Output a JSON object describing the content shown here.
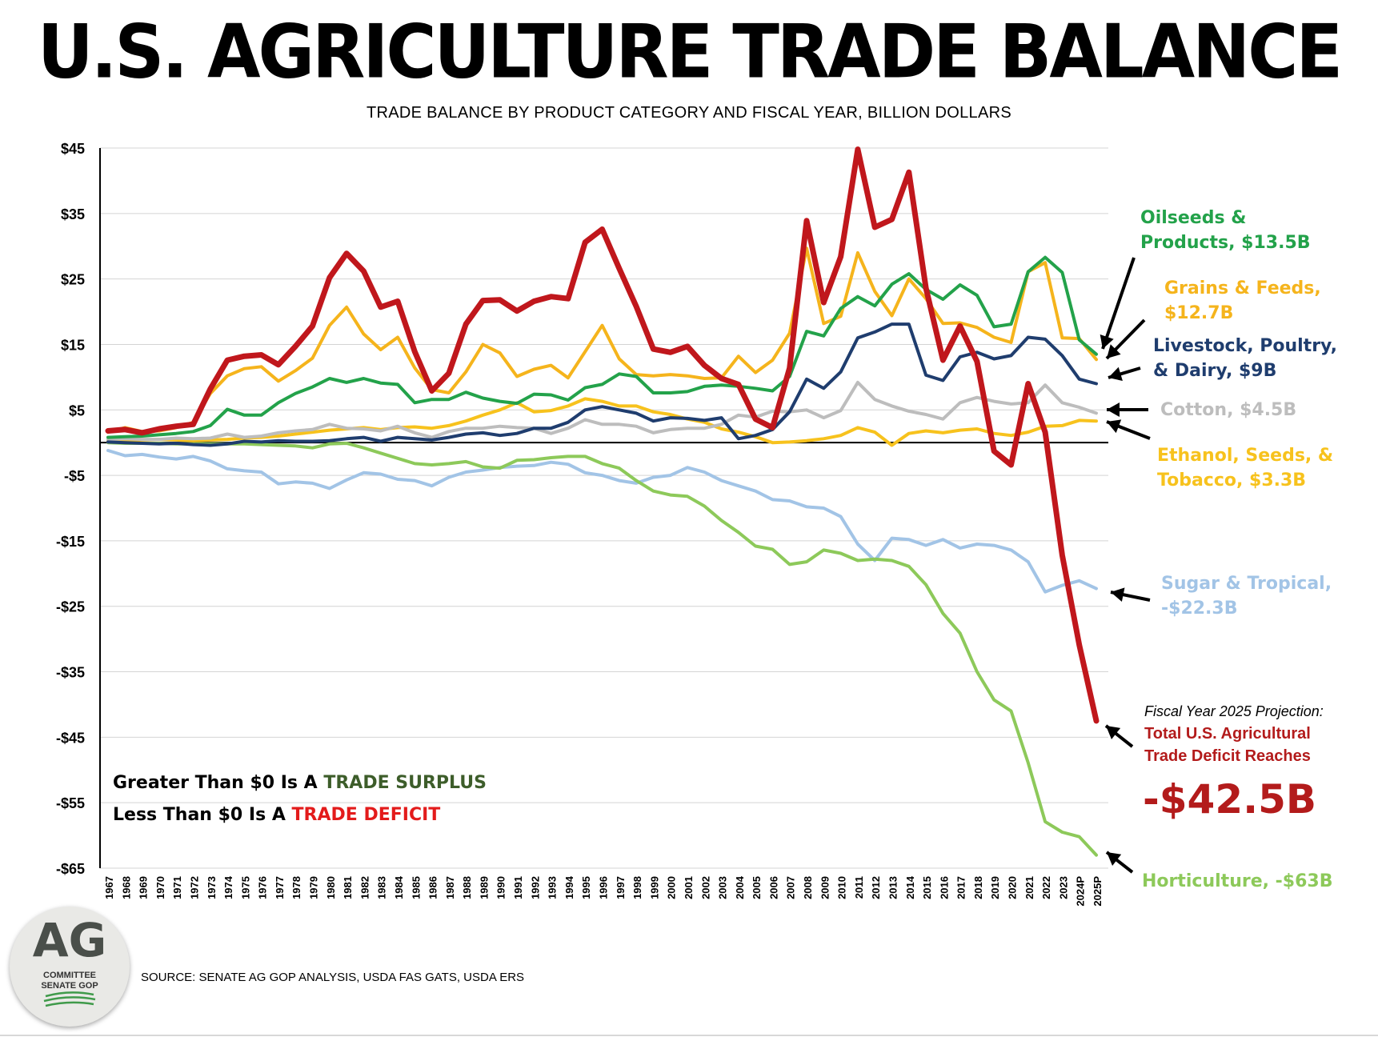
{
  "title": "U.S. AGRICULTURE TRADE BALANCE",
  "subtitle": "TRADE BALANCE BY PRODUCT CATEGORY AND FISCAL YEAR, BILLION DOLLARS",
  "source": "SOURCE: SENATE AG GOP ANALYSIS, USDA FAS GATS, USDA ERS",
  "logo": {
    "big": "AG",
    "line1": "COMMITTEE",
    "line2": "SENATE GOP"
  },
  "notes": {
    "surplus_prefix": "Greater Than $0 Is A ",
    "surplus_term": "TRADE SURPLUS",
    "deficit_prefix": "Less Than $0 Is A ",
    "deficit_term": "TRADE DEFICIT"
  },
  "annotations": {
    "oilseeds": [
      "Oilseeds &",
      "Products, $13.5B"
    ],
    "grains": [
      "Grains & Feeds,",
      "$12.7B"
    ],
    "livestock": [
      "Livestock, Poultry,",
      "& Dairy, $9B"
    ],
    "cotton": [
      "Cotton, $4.5B"
    ],
    "ethanol": [
      "Ethanol, Seeds, &",
      "Tobacco, $3.3B"
    ],
    "sugar": [
      "Sugar & Tropical,",
      "-$22.3B"
    ],
    "projection_italic": "Fiscal Year 2025 Projection:",
    "projection_line1": "Total U.S. Agricultural",
    "projection_line2": "Trade Deficit Reaches",
    "projection_value": "-$42.5B",
    "horticulture": [
      "Horticulture, -$63B"
    ]
  },
  "colors": {
    "total": "#c0171c",
    "oilseeds": "#23a24a",
    "grains": "#f5b41c",
    "livestock": "#1f3d6e",
    "cotton": "#bdbdbd",
    "ethanol": "#f7c21d",
    "sugar": "#a2c4e6",
    "horticulture": "#8dc95a",
    "surplus": "#3d5d2a",
    "deficit": "#e31b1b",
    "grid": "#d4d4d4"
  },
  "chart_data": {
    "type": "line",
    "title": "U.S. AGRICULTURE TRADE BALANCE",
    "subtitle": "TRADE BALANCE BY PRODUCT CATEGORY AND FISCAL YEAR, BILLION DOLLARS",
    "xlabel": "",
    "ylabel": "",
    "ylim": [
      -65,
      45
    ],
    "yticks": [
      45,
      35,
      25,
      15,
      5,
      -5,
      -15,
      -25,
      -35,
      -45,
      -55,
      -65
    ],
    "ytick_labels": [
      "$45",
      "$35",
      "$25",
      "$15",
      "$5",
      "-$5",
      "-$15",
      "-$25",
      "-$35",
      "-$45",
      "-$55",
      "-$65"
    ],
    "grid": true,
    "legend": "none (direct labels on right)",
    "categories": [
      "1967",
      "1968",
      "1969",
      "1970",
      "1971",
      "1972",
      "1973",
      "1974",
      "1975",
      "1976",
      "1977",
      "1978",
      "1979",
      "1980",
      "1981",
      "1982",
      "1983",
      "1984",
      "1985",
      "1986",
      "1987",
      "1988",
      "1989",
      "1990",
      "1991",
      "1992",
      "1993",
      "1994",
      "1995",
      "1996",
      "1997",
      "1998",
      "1999",
      "2000",
      "2001",
      "2002",
      "2003",
      "2004",
      "2005",
      "2006",
      "2007",
      "2008",
      "2009",
      "2010",
      "2011",
      "2012",
      "2013",
      "2014",
      "2015",
      "2016",
      "2017",
      "2018",
      "2019",
      "2020",
      "2021",
      "2022",
      "2023",
      "2024P",
      "2025P"
    ],
    "series": [
      {
        "key": "sugar",
        "name": "Sugar & Tropical",
        "values": [
          -1.2,
          -2,
          -1.8,
          -2.2,
          -2.5,
          -2.1,
          -2.8,
          -4,
          -4.3,
          -4.5,
          -6.3,
          -6,
          -6.2,
          -7,
          -5.7,
          -4.6,
          -4.8,
          -5.6,
          -5.8,
          -6.6,
          -5.3,
          -4.5,
          -4.2,
          -3.8,
          -3.6,
          -3.5,
          -3,
          -3.3,
          -4.6,
          -5,
          -5.8,
          -6.2,
          -5.3,
          -5,
          -3.8,
          -4.5,
          -5.8,
          -6.6,
          -7.4,
          -8.7,
          -8.9,
          -9.8,
          -10,
          -11.3,
          -15.5,
          -18,
          -14.6,
          -14.8,
          -15.7,
          -14.8,
          -16.1,
          -15.5,
          -15.7,
          -16.4,
          -18.2,
          -22.8,
          -21.8,
          -21.1,
          -22.3
        ]
      },
      {
        "key": "horticulture",
        "name": "Horticulture",
        "values": [
          0,
          -0.1,
          -0.1,
          -0.1,
          -0.2,
          -0.2,
          -0.2,
          -0.2,
          -0.2,
          -0.3,
          -0.4,
          -0.5,
          -0.8,
          -0.2,
          -0.1,
          -0.8,
          -1.6,
          -2.4,
          -3.2,
          -3.4,
          -3.2,
          -2.9,
          -3.7,
          -3.9,
          -2.7,
          -2.6,
          -2.3,
          -2.1,
          -2.1,
          -3.2,
          -3.9,
          -5.8,
          -7.4,
          -8,
          -8.2,
          -9.7,
          -11.9,
          -13.7,
          -15.8,
          -16.3,
          -18.6,
          -18.2,
          -16.4,
          -16.9,
          -18,
          -17.8,
          -18,
          -18.9,
          -21.7,
          -26.1,
          -29.1,
          -35,
          -39.3,
          -41,
          -48.9,
          -57.9,
          -59.5,
          -60.2,
          -63
        ]
      },
      {
        "key": "ethanol",
        "name": "Ethanol, Seeds, & Tobacco",
        "values": [
          0.2,
          0.3,
          0.4,
          0.5,
          0.4,
          0.3,
          0.4,
          0.5,
          0.7,
          0.8,
          1,
          1.3,
          1.6,
          1.9,
          2.1,
          2.3,
          2,
          2.3,
          2.4,
          2.2,
          2.6,
          3.3,
          4.2,
          5,
          6.1,
          4.7,
          4.9,
          5.6,
          6.7,
          6.3,
          5.6,
          5.6,
          4.7,
          4.3,
          3.6,
          3.1,
          2.1,
          1.6,
          0.9,
          0,
          0.1,
          0.3,
          0.6,
          1.1,
          2.3,
          1.6,
          -0.4,
          1.4,
          1.8,
          1.5,
          1.9,
          2.1,
          1.4,
          1.1,
          1.6,
          2.5,
          2.6,
          3.4,
          3.3
        ]
      },
      {
        "key": "cotton",
        "name": "Cotton",
        "values": [
          0.5,
          0.6,
          0.5,
          0.5,
          0.7,
          0.6,
          0.7,
          1.3,
          0.8,
          1,
          1.5,
          1.8,
          2,
          2.8,
          2.2,
          2.1,
          1.8,
          2.5,
          1.5,
          0.8,
          1.7,
          2.2,
          2.2,
          2.5,
          2.3,
          2.2,
          1.4,
          2.2,
          3.5,
          2.8,
          2.8,
          2.5,
          1.5,
          2,
          2.2,
          2.2,
          2.8,
          4.2,
          3.9,
          4.8,
          4.7,
          5,
          3.8,
          4.9,
          9.2,
          6.6,
          5.6,
          4.8,
          4.3,
          3.6,
          6.1,
          6.9,
          6.3,
          5.9,
          6.1,
          8.8,
          6.1,
          5.4,
          4.5
        ]
      },
      {
        "key": "livestock",
        "name": "Livestock, Poultry, & Dairy",
        "values": [
          0.1,
          0,
          -0.1,
          -0.2,
          -0.1,
          -0.3,
          -0.4,
          -0.2,
          0.2,
          0.1,
          0.3,
          0.2,
          0.2,
          0.3,
          0.6,
          0.8,
          0.2,
          0.8,
          0.6,
          0.4,
          0.8,
          1.3,
          1.5,
          1.1,
          1.4,
          2.2,
          2.2,
          3.1,
          5,
          5.5,
          5,
          4.5,
          3.3,
          3.8,
          3.7,
          3.4,
          3.8,
          0.6,
          1.1,
          2,
          4.7,
          9.7,
          8.3,
          10.8,
          16,
          16.9,
          18.1,
          18.1,
          10.3,
          9.5,
          13.1,
          13.8,
          12.8,
          13.3,
          16.1,
          15.8,
          13.3,
          9.7,
          9
        ]
      },
      {
        "key": "grains",
        "name": "Grains & Feeds",
        "values": [
          1.6,
          2.3,
          1.7,
          1.8,
          2.3,
          3.1,
          7.5,
          10.2,
          11.3,
          11.6,
          9.4,
          11,
          12.9,
          17.9,
          20.7,
          16.6,
          14.2,
          16.1,
          11.4,
          8.1,
          7.6,
          10.8,
          15,
          13.7,
          10.1,
          11.2,
          11.8,
          9.9,
          13.9,
          17.9,
          12.8,
          10.4,
          10.2,
          10.4,
          10.2,
          9.8,
          9.9,
          13.2,
          10.7,
          12.6,
          16.7,
          29.7,
          18.2,
          19.3,
          29,
          23.1,
          19.4,
          25,
          22,
          18.2,
          18.3,
          17.6,
          16.1,
          15.3,
          26.1,
          27.5,
          16,
          15.9,
          12.7
        ]
      },
      {
        "key": "oilseeds",
        "name": "Oilseeds & Products",
        "values": [
          0.8,
          0.9,
          1,
          1.2,
          1.4,
          1.7,
          2.6,
          5.1,
          4.2,
          4.2,
          6.1,
          7.5,
          8.5,
          9.8,
          9.2,
          9.8,
          9.1,
          8.9,
          6.1,
          6.6,
          6.6,
          7.7,
          6.8,
          6.3,
          6,
          7.4,
          7.3,
          6.5,
          8.4,
          8.9,
          10.5,
          10.1,
          7.6,
          7.6,
          7.8,
          8.6,
          8.8,
          8.6,
          8.3,
          7.9,
          10.1,
          17,
          16.3,
          20.5,
          22.3,
          20.9,
          24.2,
          25.8,
          23.4,
          21.9,
          24.1,
          22.5,
          17.7,
          18.1,
          26.1,
          28.3,
          26,
          15.7,
          13.5
        ]
      },
      {
        "key": "total",
        "name": "Total U.S. Agricultural Trade",
        "values": [
          1.8,
          2,
          1.5,
          2.1,
          2.5,
          2.8,
          8.2,
          12.6,
          13.2,
          13.4,
          11.9,
          14.7,
          17.8,
          25.2,
          28.9,
          26.2,
          20.7,
          21.6,
          13.9,
          7.9,
          10.6,
          18.1,
          21.7,
          21.8,
          20.1,
          21.6,
          22.3,
          22,
          30.6,
          32.6,
          26.6,
          20.8,
          14.3,
          13.8,
          14.7,
          11.8,
          9.8,
          8.9,
          3.6,
          2.3,
          11.4,
          33.9,
          21.4,
          28.4,
          44.8,
          32.9,
          34.1,
          41.3,
          23.6,
          12.6,
          17.8,
          12.4,
          -1.3,
          -3.4,
          9,
          1.6,
          -17.2,
          -30.9,
          -42.5
        ]
      }
    ]
  }
}
